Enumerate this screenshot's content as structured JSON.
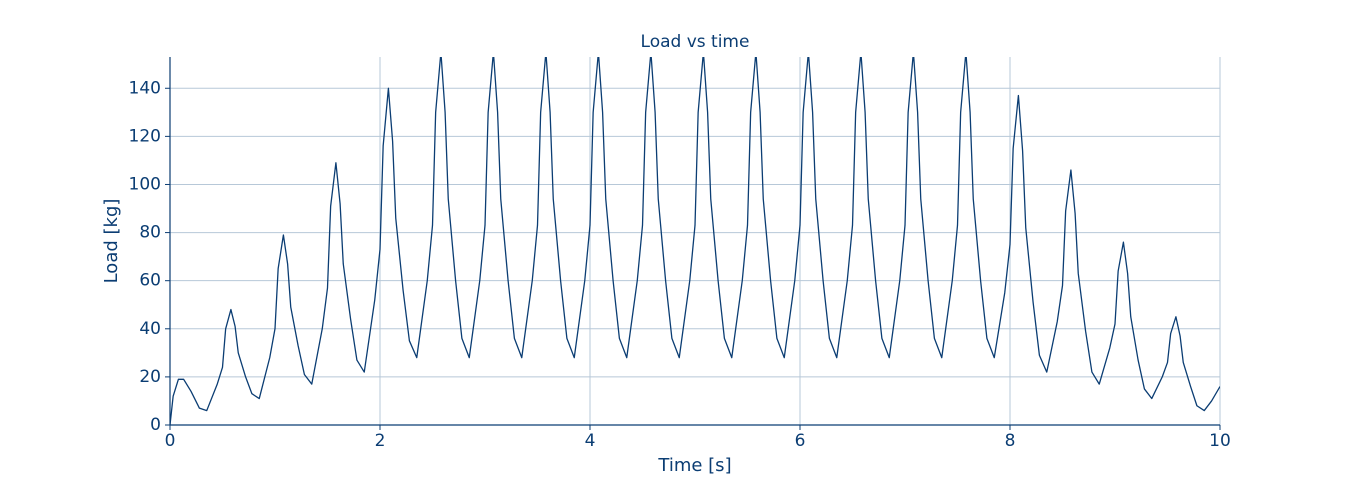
{
  "chart_data": {
    "type": "line",
    "title": "Load vs time",
    "x_label": "Time [s]",
    "y_label": "Load [kg]",
    "color": "#0b3d73",
    "grid": true,
    "xlim": [
      0,
      10
    ],
    "xticks": [
      0,
      2,
      4,
      6,
      8,
      10
    ],
    "ylim": [
      0,
      153
    ],
    "yticks": [
      0,
      20,
      40,
      60,
      80,
      100,
      120,
      140
    ],
    "x": [
      0,
      0.03,
      0.08,
      0.13,
      0.2,
      0.28,
      0.35,
      0.45,
      0.5,
      0.53,
      0.58,
      0.62,
      0.65,
      0.72,
      0.78,
      0.85,
      0.95,
      1,
      1.03,
      1.08,
      1.12,
      1.15,
      1.22,
      1.28,
      1.35,
      1.45,
      1.5,
      1.53,
      1.58,
      1.62,
      1.65,
      1.72,
      1.78,
      1.85,
      1.95,
      2,
      2.03,
      2.08,
      2.12,
      2.15,
      2.22,
      2.28,
      2.35,
      2.45,
      2.5,
      2.53,
      2.58,
      2.62,
      2.65,
      2.72,
      2.78,
      2.85,
      2.95,
      3,
      3.03,
      3.08,
      3.12,
      3.15,
      3.22,
      3.28,
      3.35,
      3.45,
      3.5,
      3.53,
      3.58,
      3.62,
      3.65,
      3.72,
      3.78,
      3.85,
      3.95,
      4,
      4.03,
      4.08,
      4.12,
      4.15,
      4.22,
      4.28,
      4.35,
      4.45,
      4.5,
      4.53,
      4.58,
      4.62,
      4.65,
      4.72,
      4.78,
      4.85,
      4.95,
      5,
      5.03,
      5.08,
      5.12,
      5.15,
      5.22,
      5.28,
      5.35,
      5.45,
      5.5,
      5.53,
      5.58,
      5.62,
      5.65,
      5.72,
      5.78,
      5.85,
      5.95,
      6,
      6.03,
      6.08,
      6.12,
      6.15,
      6.22,
      6.28,
      6.35,
      6.45,
      6.5,
      6.53,
      6.58,
      6.62,
      6.65,
      6.72,
      6.78,
      6.85,
      6.95,
      7,
      7.03,
      7.08,
      7.12,
      7.15,
      7.22,
      7.28,
      7.35,
      7.45,
      7.5,
      7.53,
      7.58,
      7.62,
      7.65,
      7.72,
      7.78,
      7.85,
      7.95,
      8,
      8.03,
      8.08,
      8.12,
      8.15,
      8.22,
      8.28,
      8.35,
      8.45,
      8.5,
      8.53,
      8.58,
      8.62,
      8.65,
      8.72,
      8.78,
      8.85,
      8.95,
      9,
      9.03,
      9.08,
      9.12,
      9.15,
      9.22,
      9.28,
      9.35,
      9.45,
      9.5,
      9.53,
      9.58,
      9.62,
      9.65,
      9.72,
      9.78,
      9.85,
      9.92,
      10
    ],
    "values": [
      0,
      12,
      19,
      19,
      14,
      7,
      6,
      17,
      24,
      40,
      48,
      41,
      30,
      20,
      13,
      11,
      28,
      40,
      65,
      79,
      67,
      49,
      33,
      21,
      17,
      40,
      57,
      91,
      109,
      92,
      67,
      44,
      27,
      22,
      52,
      73,
      116,
      140,
      118,
      86,
      56,
      35,
      28,
      60,
      83,
      130,
      155,
      130,
      94,
      60,
      36,
      28,
      60,
      83,
      130,
      155,
      130,
      94,
      60,
      36,
      28,
      60,
      83,
      130,
      155,
      130,
      94,
      60,
      36,
      28,
      60,
      83,
      130,
      155,
      130,
      94,
      60,
      36,
      28,
      60,
      83,
      130,
      155,
      130,
      94,
      60,
      36,
      28,
      60,
      83,
      130,
      155,
      130,
      94,
      60,
      36,
      28,
      60,
      83,
      130,
      155,
      130,
      94,
      60,
      36,
      28,
      60,
      83,
      130,
      155,
      130,
      94,
      60,
      36,
      28,
      60,
      83,
      130,
      155,
      130,
      94,
      60,
      36,
      28,
      60,
      83,
      130,
      155,
      130,
      94,
      60,
      36,
      28,
      60,
      83,
      130,
      155,
      130,
      94,
      60,
      36,
      28,
      55,
      75,
      115,
      137,
      114,
      82,
      51,
      29,
      22,
      43,
      58,
      89,
      106,
      88,
      63,
      39,
      22,
      17,
      32,
      42,
      64,
      76,
      63,
      45,
      27,
      15,
      11,
      20,
      26,
      38,
      45,
      37,
      26,
      16,
      8,
      6,
      10,
      16
    ]
  }
}
